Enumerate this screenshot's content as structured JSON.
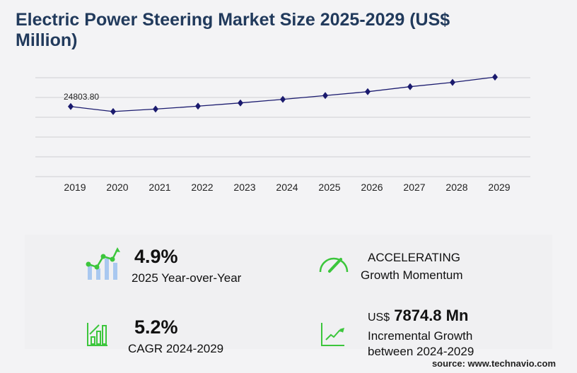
{
  "title": "Electric Power Steering Market Size 2025-2029 (US$ Million)",
  "chart_data": {
    "type": "line",
    "title": "Electric Power Steering Market Size 2025-2029 (US$ Million)",
    "categories": [
      "2019",
      "2020",
      "2021",
      "2022",
      "2023",
      "2024",
      "2025",
      "2026",
      "2027",
      "2028",
      "2029"
    ],
    "values": [
      24803.8,
      23026,
      23915,
      24930,
      26073,
      27344,
      28684,
      30050,
      31827,
      33350,
      35219
    ],
    "data_labels": [
      {
        "index": 0,
        "text": "24803.80"
      }
    ],
    "xlabel": "",
    "ylabel": "",
    "ylim": [
      0,
      35000
    ],
    "grid": true,
    "line_color": "#1a1a6e"
  },
  "stats": {
    "yoy_value": "4.9%",
    "yoy_label": "2025 Year-over-Year",
    "momentum_value": "ACCELERATING",
    "momentum_label": "Growth Momentum",
    "cagr_value": "5.2%",
    "cagr_label": "CAGR 2024-2029",
    "incr_prefix": "US$",
    "incr_value": "7874.8 Mn",
    "incr_label1": "Incremental Growth",
    "incr_label2": "between 2024-2029"
  },
  "source": "source: www.technavio.com",
  "colors": {
    "accent": "#3cc63c",
    "bar": "#a9c8f0",
    "title": "#213a5c"
  }
}
